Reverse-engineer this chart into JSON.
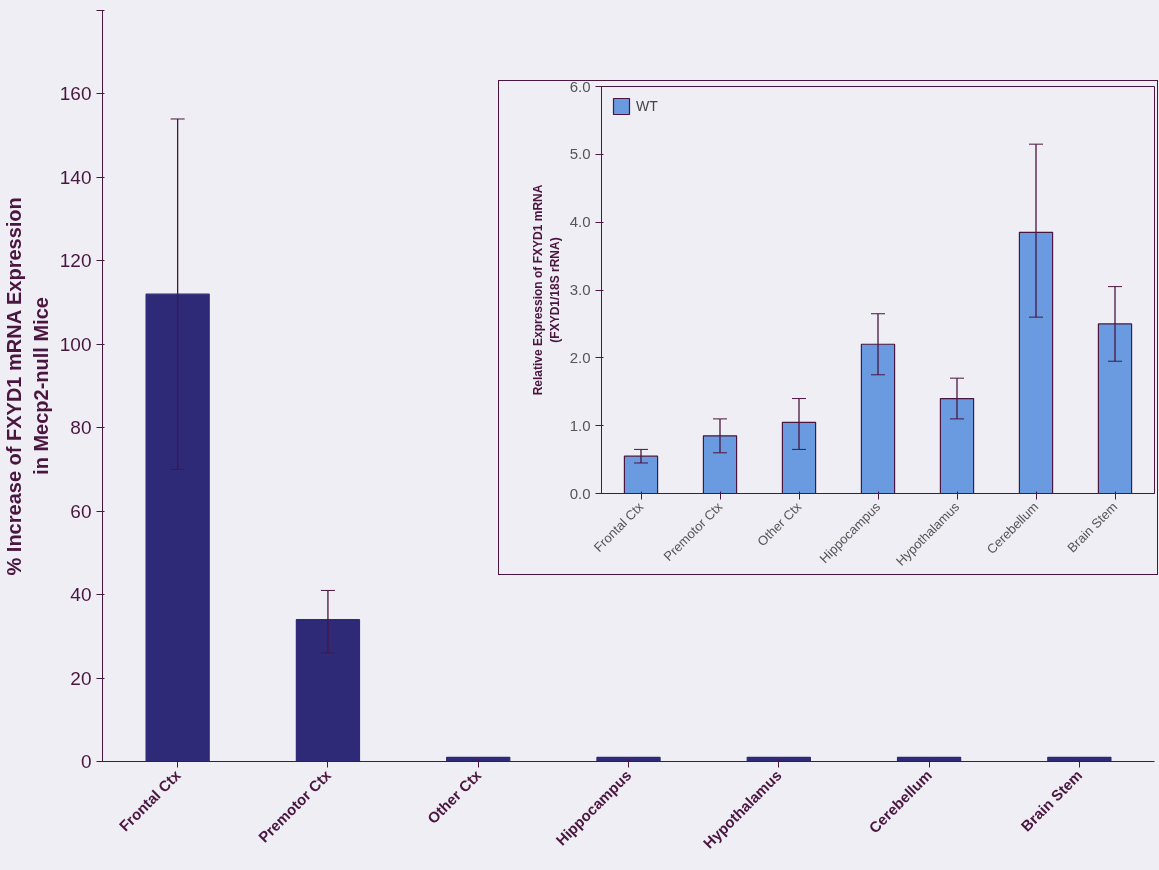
{
  "chart_data": [
    {
      "type": "bar",
      "ylabel": "% Increase of FXYD1 mRNA Expression\nin Mecp2-null Mice",
      "categories": [
        "Frontal Ctx",
        "Premotor Ctx",
        "Other Ctx",
        "Hippocampus",
        "Hypothalamus",
        "Cerebellum",
        "Brain Stem"
      ],
      "values": [
        112,
        34,
        1,
        1,
        1,
        1,
        1
      ],
      "color": "#2e2a78",
      "errors": [
        [
          70,
          154
        ],
        [
          26,
          41
        ],
        null,
        null,
        null,
        null,
        null
      ],
      "ylim": [
        0,
        180
      ],
      "yticks": [
        0,
        20,
        40,
        60,
        80,
        100,
        120,
        140,
        160,
        {
          "value": 180,
          "label": null
        }
      ],
      "grid": false,
      "legend": false
    },
    {
      "type": "bar",
      "ylabel": "Relative Expression of FXYD1 mRNA\n(FXYD1/18S rRNA)",
      "categories": [
        "Frontal Ctx",
        "Premotor Ctx",
        "Other Ctx",
        "Hippocampus",
        "Hypothalamus",
        "Cerebellum",
        "Brain Stem"
      ],
      "series": [
        {
          "name": "WT",
          "color": "#6a9be0",
          "values": [
            0.55,
            0.85,
            1.05,
            2.2,
            1.4,
            3.85,
            2.5
          ],
          "errors": [
            [
              0.45,
              0.65
            ],
            [
              0.6,
              1.1
            ],
            [
              0.65,
              1.4
            ],
            [
              1.75,
              2.65
            ],
            [
              1.1,
              1.7
            ],
            [
              2.6,
              5.15
            ],
            [
              1.95,
              3.05
            ]
          ]
        }
      ],
      "ylim": [
        0,
        6
      ],
      "yticks": [
        {
          "value": 0,
          "label": "0.0"
        },
        {
          "value": 1,
          "label": "1.0"
        },
        {
          "value": 2,
          "label": "2.0"
        },
        {
          "value": 3,
          "label": "3.0"
        },
        {
          "value": 4,
          "label": "4.0"
        },
        {
          "value": 5,
          "label": "5.0"
        },
        {
          "value": 6,
          "label": "6.0"
        }
      ],
      "grid": false,
      "legend": "top left"
    }
  ]
}
